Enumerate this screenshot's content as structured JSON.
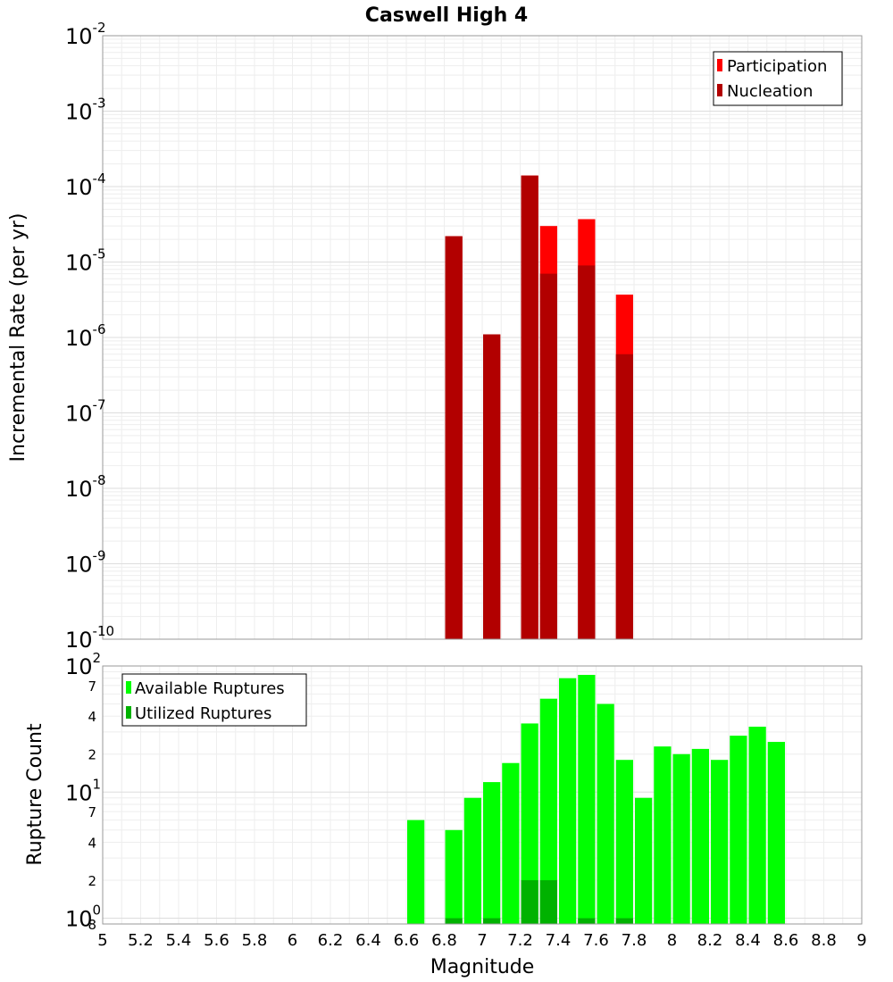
{
  "chart_data": [
    {
      "type": "bar",
      "title": "Caswell High 4",
      "xlabel": "",
      "ylabel": "Incremental Rate (per yr)",
      "y_scale": "log",
      "ylim": [
        1e-10,
        0.01
      ],
      "xlim": [
        5,
        9
      ],
      "bar_width": 0.1,
      "grid": true,
      "legend_position": "top-right",
      "y_ticks": [
        {
          "base": "10",
          "exp": "-10",
          "value": 1e-10
        },
        {
          "base": "10",
          "exp": "-9",
          "value": 1e-09
        },
        {
          "base": "10",
          "exp": "-8",
          "value": 1e-08
        },
        {
          "base": "10",
          "exp": "-7",
          "value": 1e-07
        },
        {
          "base": "10",
          "exp": "-6",
          "value": 1e-06
        },
        {
          "base": "10",
          "exp": "-5",
          "value": 1e-05
        },
        {
          "base": "10",
          "exp": "-4",
          "value": 0.0001
        },
        {
          "base": "10",
          "exp": "-3",
          "value": 0.001
        },
        {
          "base": "10",
          "exp": "-2",
          "value": 0.01
        }
      ],
      "series": [
        {
          "name": "Participation",
          "color": "#ff0000",
          "x": [
            6.85,
            7.05,
            7.25,
            7.35,
            7.55,
            7.75
          ],
          "values": [
            2.2e-05,
            1.1e-06,
            0.00014,
            3e-05,
            3.7e-05,
            3.7e-06
          ]
        },
        {
          "name": "Nucleation",
          "color": "#b20000",
          "x": [
            6.85,
            7.05,
            7.25,
            7.35,
            7.55,
            7.75
          ],
          "values": [
            2.2e-05,
            1.1e-06,
            0.00014,
            7e-06,
            9e-06,
            6e-07
          ]
        }
      ]
    },
    {
      "type": "bar",
      "title": "",
      "xlabel": "Magnitude",
      "ylabel": "Rupture Count",
      "y_scale": "log",
      "ylim": [
        0.9,
        100
      ],
      "xlim": [
        5,
        9
      ],
      "bar_width": 0.1,
      "grid": true,
      "legend_position": "top-left",
      "y_ticks": [
        {
          "base": "10",
          "exp": "0",
          "value": 1
        },
        {
          "base": "10",
          "exp": "1",
          "value": 10
        },
        {
          "base": "10",
          "exp": "2",
          "value": 100
        }
      ],
      "y_minor_labels": [
        {
          "label": "8",
          "value": 0.9
        },
        {
          "label": "2",
          "value": 2
        },
        {
          "label": "4",
          "value": 4
        },
        {
          "label": "7",
          "value": 7
        },
        {
          "label": "2",
          "value": 20
        },
        {
          "label": "4",
          "value": 40
        },
        {
          "label": "7",
          "value": 70
        }
      ],
      "x_ticks": [
        "5",
        "5.2",
        "5.4",
        "5.6",
        "5.8",
        "6",
        "6.2",
        "6.4",
        "6.6",
        "6.8",
        "7",
        "7.2",
        "7.4",
        "7.6",
        "7.8",
        "8",
        "8.2",
        "8.4",
        "8.6",
        "8.8",
        "9"
      ],
      "series": [
        {
          "name": "Available Ruptures",
          "color": "#00ff00",
          "x": [
            6.65,
            6.85,
            6.95,
            7.05,
            7.15,
            7.25,
            7.35,
            7.45,
            7.55,
            7.65,
            7.75,
            7.85,
            7.95,
            8.05,
            8.15,
            8.25,
            8.35,
            8.45,
            8.55
          ],
          "values": [
            6,
            5,
            9,
            12,
            17,
            35,
            55,
            80,
            85,
            50,
            18,
            9,
            23,
            20,
            22,
            18,
            28,
            33,
            25
          ]
        },
        {
          "name": "Utilized Ruptures",
          "color": "#00b200",
          "x": [
            6.85,
            7.05,
            7.25,
            7.35,
            7.55,
            7.75
          ],
          "values": [
            1,
            1,
            2,
            2,
            1,
            1
          ]
        }
      ]
    }
  ]
}
